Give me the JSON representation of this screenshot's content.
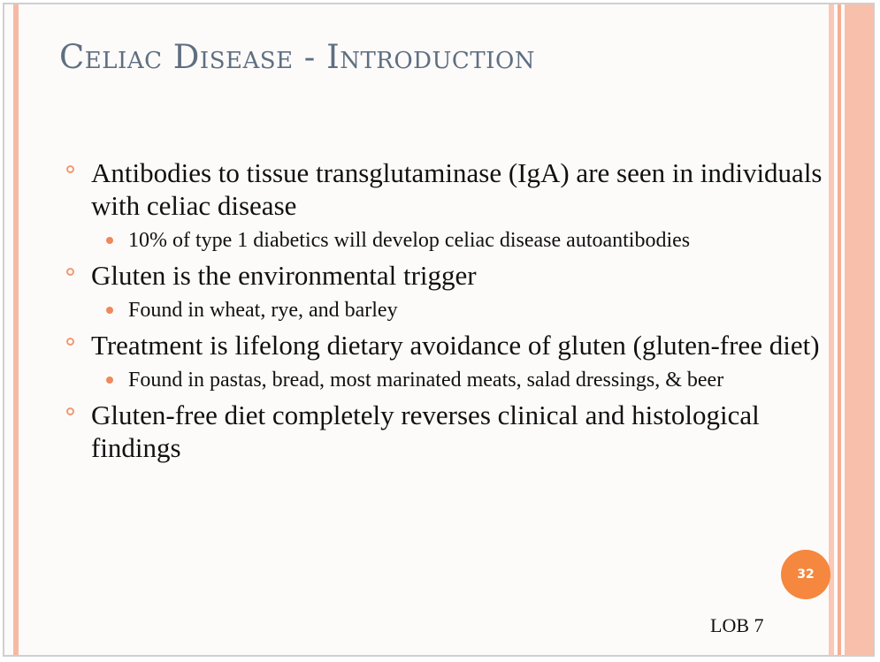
{
  "slide": {
    "title": "Celiac Disease - Introduction",
    "bullets": [
      {
        "text": "Antibodies to tissue transglutaminase (IgA) are seen in individuals with celiac disease",
        "sub": "10% of type 1 diabetics will develop celiac disease autoantibodies"
      },
      {
        "text": "Gluten is the environmental trigger",
        "sub": "Found in wheat, rye, and barley"
      },
      {
        "text": "Treatment is lifelong dietary avoidance of gluten (gluten-free diet)",
        "sub": "Found in pastas, bread, most marinated meats, salad dressings, & beer"
      },
      {
        "text": "Gluten-free diet completely reverses clinical and histological findings"
      }
    ],
    "page_number": "32",
    "footer_label": "LOB 7"
  },
  "colors": {
    "title": "#5f6f82",
    "bullet_ring": "#f19a72",
    "bullet_dot": "#f0885a",
    "page_badge": "#f5873e",
    "accent_stripe": "#f7b9a4"
  }
}
